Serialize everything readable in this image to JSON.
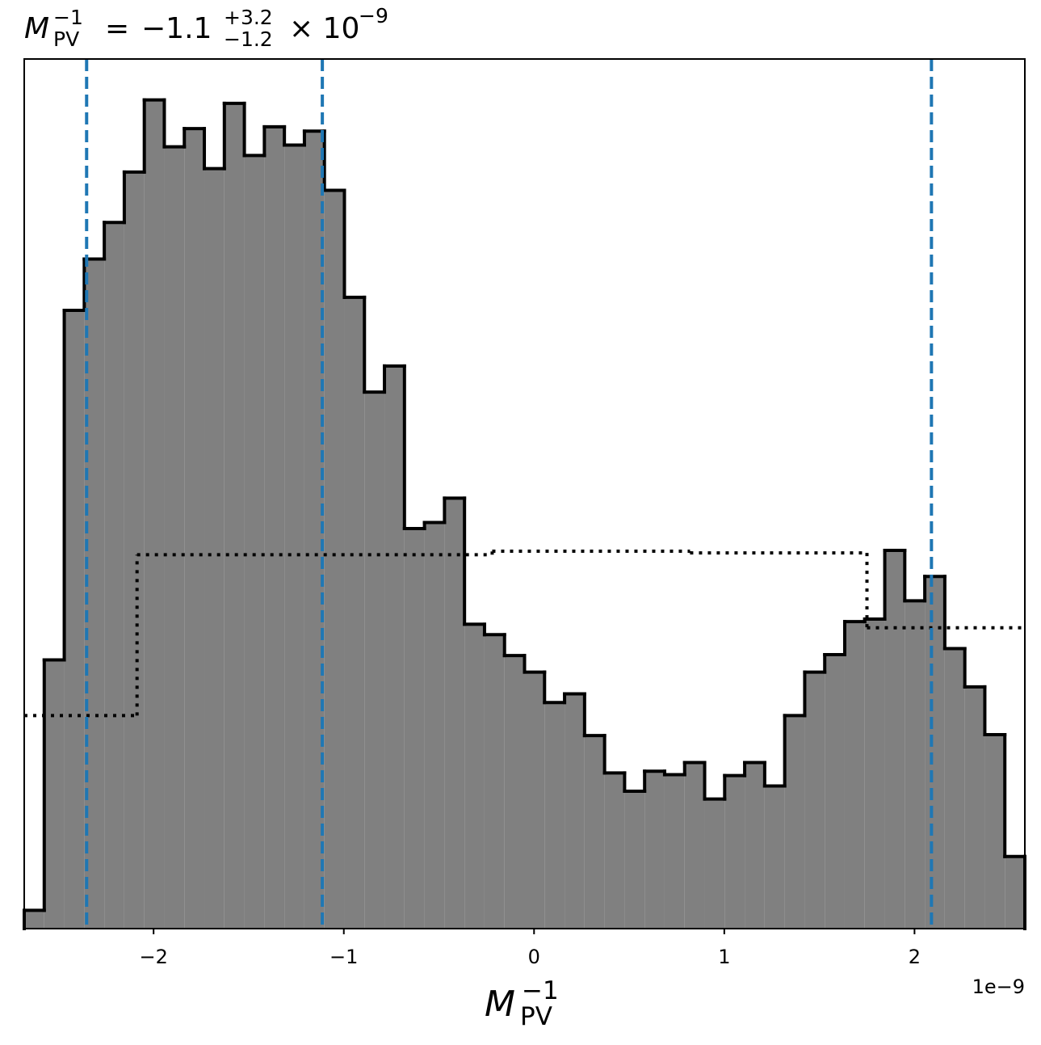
{
  "chart_data": {
    "type": "histogram",
    "title": {
      "symbol": "M",
      "superscript": "−1",
      "subscript": "PV",
      "equals": "=",
      "value": "−1.1",
      "upper": "+3.2",
      "lower": "−1.2",
      "times": "× 10",
      "exponent": "−9"
    },
    "x_label": {
      "symbol": "M",
      "superscript": "−1",
      "subscript": "PV"
    },
    "x_offset_label": "1e−9",
    "bins": [
      -2.68,
      -2.5748,
      -2.4696,
      -2.3644,
      -2.2592,
      -2.154,
      -2.0488,
      -1.9436,
      -1.8384,
      -1.7332,
      -1.628,
      -1.5228,
      -1.4176,
      -1.3124,
      -1.2072,
      -1.102,
      -0.9968,
      -0.8916,
      -0.7864,
      -0.6812,
      -0.576,
      -0.4708,
      -0.3656,
      -0.2604,
      -0.1552,
      -0.05,
      0.0552,
      0.1604,
      0.2656,
      0.3708,
      0.476,
      0.5812,
      0.6864,
      0.7916,
      0.8968,
      1.002,
      1.1072,
      1.2124,
      1.3176,
      1.4228,
      1.528,
      1.6332,
      1.7384,
      1.8436,
      1.9488,
      2.054,
      2.1592,
      2.2644,
      2.3696,
      2.4748,
      2.58
    ],
    "values": [
      2.1,
      30.9,
      71.1,
      77.0,
      81.2,
      87.0,
      95.3,
      89.9,
      92.0,
      87.4,
      94.9,
      88.9,
      92.2,
      90.1,
      91.7,
      84.9,
      72.6,
      61.7,
      64.7,
      46.0,
      46.7,
      49.5,
      35.0,
      33.8,
      31.4,
      29.5,
      26.0,
      27.0,
      22.2,
      17.9,
      15.8,
      18.1,
      17.7,
      19.1,
      14.9,
      17.6,
      19.1,
      16.4,
      24.5,
      29.5,
      31.5,
      35.3,
      35.6,
      43.5,
      37.7,
      40.5,
      32.2,
      27.8,
      22.3,
      8.3
    ],
    "color": "#808080",
    "edge_color": "#000000",
    "prior": {
      "bins": [
        -2.68,
        -2.087,
        -0.22,
        0.82,
        1.75,
        2.58
      ],
      "values": [
        24.5,
        43.0,
        43.4,
        43.2,
        34.6
      ],
      "color": "#000000"
    },
    "vlines": {
      "values": [
        -2.352,
        -1.113,
        2.089
      ],
      "color": "#1f77b4"
    },
    "xlim": [
      -2.68,
      2.58
    ],
    "ylim": [
      0,
      100
    ],
    "xticks": [
      {
        "value": -2,
        "label": "−2"
      },
      {
        "value": -1,
        "label": "−1"
      },
      0,
      1,
      2
    ]
  }
}
